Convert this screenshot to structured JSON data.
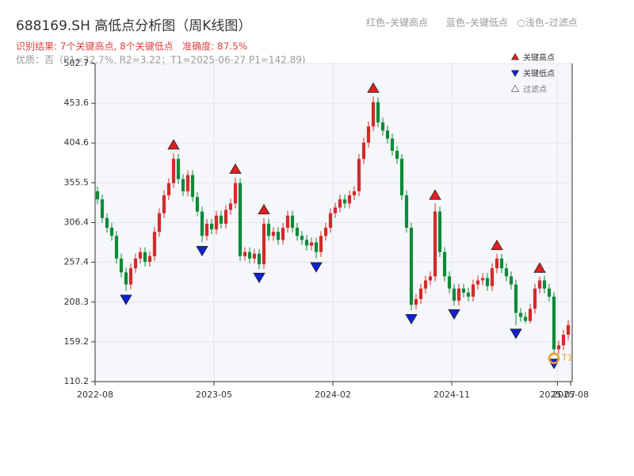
{
  "chart_data": {
    "type": "candlestick",
    "title": "688169.SH 高低点分析图（周K线图）",
    "header_legend": "红色–关键高点      蓝色–关键低点   ○浅色–过滤点",
    "result": "识别结果: 7个关键高点, 8个关键低点   准确度: 87.5%",
    "quality": "优质：否（P1=32.7%, R2=3.22；T1=2025-06-27 P1=142.89)",
    "legend": [
      "关键高点",
      "关键低点",
      "过滤点"
    ],
    "marker_label": "T1",
    "up_color": "#d42a2a",
    "down_color": "#0d8a3a",
    "high_color": "#e02020",
    "low_color": "#1020d0",
    "t1_color": "#f0a030",
    "xlim": [
      "2022-08",
      "2025-08"
    ],
    "xticks": [
      "2022-08",
      "2023-05",
      "2024-02",
      "2024-11",
      "2025-07",
      "2025-08"
    ],
    "ylim": [
      110.2,
      502.7
    ],
    "yticks": [
      110.2,
      159.2,
      208.3,
      257.4,
      306.4,
      355.5,
      404.6,
      453.6,
      502.7
    ],
    "grid": true,
    "open": [
      345,
      335,
      312,
      300,
      290,
      262,
      245,
      230,
      250,
      262,
      270,
      258,
      265,
      295,
      318,
      340,
      355,
      385,
      360,
      345,
      365,
      338,
      320,
      290,
      305,
      298,
      315,
      305,
      322,
      330,
      355,
      265,
      270,
      262,
      268,
      255,
      305,
      290,
      295,
      285,
      300,
      315,
      300,
      290,
      285,
      278,
      282,
      270,
      290,
      300,
      318,
      325,
      335,
      330,
      340,
      345,
      385,
      405,
      425,
      455,
      430,
      420,
      410,
      395,
      385,
      340,
      300,
      205,
      212,
      225,
      235,
      240,
      320,
      270,
      240,
      225,
      210,
      225,
      220,
      215,
      230,
      235,
      238,
      228,
      250,
      262,
      250,
      240,
      230,
      195,
      190,
      185,
      200,
      225,
      235,
      225,
      215,
      150,
      155,
      168
    ],
    "close": [
      335,
      312,
      300,
      290,
      262,
      245,
      230,
      250,
      262,
      270,
      258,
      265,
      295,
      318,
      340,
      355,
      385,
      360,
      345,
      365,
      338,
      320,
      290,
      305,
      298,
      315,
      305,
      322,
      330,
      355,
      265,
      270,
      262,
      268,
      255,
      305,
      290,
      295,
      285,
      300,
      315,
      300,
      290,
      285,
      278,
      282,
      270,
      290,
      300,
      318,
      325,
      335,
      330,
      340,
      345,
      385,
      405,
      425,
      455,
      430,
      420,
      410,
      395,
      385,
      340,
      300,
      205,
      212,
      225,
      235,
      240,
      320,
      270,
      240,
      225,
      210,
      225,
      220,
      215,
      230,
      235,
      238,
      228,
      250,
      262,
      250,
      240,
      230,
      195,
      190,
      185,
      200,
      225,
      235,
      225,
      215,
      150,
      155,
      168,
      180
    ],
    "high": [
      351,
      341,
      318,
      306,
      296,
      268,
      251,
      256,
      268,
      276,
      276,
      271,
      301,
      324,
      346,
      361,
      392,
      391,
      366,
      371,
      371,
      344,
      326,
      311,
      311,
      321,
      321,
      328,
      336,
      362,
      361,
      276,
      276,
      274,
      274,
      312,
      311,
      301,
      301,
      306,
      321,
      321,
      306,
      296,
      291,
      288,
      288,
      296,
      306,
      324,
      331,
      341,
      341,
      346,
      351,
      391,
      411,
      431,
      462,
      461,
      436,
      426,
      416,
      401,
      391,
      346,
      306,
      218,
      231,
      241,
      246,
      330,
      326,
      276,
      246,
      231,
      231,
      231,
      226,
      236,
      241,
      244,
      244,
      256,
      268,
      268,
      256,
      246,
      236,
      201,
      196,
      206,
      231,
      240,
      241,
      231,
      221,
      161,
      174,
      186
    ],
    "low": [
      329,
      306,
      294,
      284,
      256,
      239,
      222,
      224,
      244,
      256,
      252,
      252,
      259,
      289,
      312,
      334,
      349,
      354,
      339,
      339,
      332,
      314,
      282,
      284,
      292,
      292,
      299,
      299,
      316,
      324,
      259,
      259,
      256,
      256,
      249,
      249,
      284,
      284,
      279,
      279,
      294,
      294,
      284,
      279,
      272,
      272,
      262,
      264,
      284,
      294,
      312,
      319,
      324,
      324,
      334,
      339,
      379,
      399,
      419,
      424,
      414,
      404,
      389,
      379,
      334,
      294,
      198,
      199,
      206,
      219,
      229,
      234,
      264,
      234,
      219,
      204,
      204,
      214,
      209,
      209,
      224,
      229,
      222,
      222,
      244,
      244,
      234,
      224,
      180,
      184,
      182,
      182,
      194,
      219,
      219,
      209,
      142.89,
      144,
      149,
      162
    ],
    "key_highs": [
      16,
      29,
      35,
      58,
      71,
      84,
      93
    ],
    "key_lows": [
      6,
      22,
      34,
      46,
      66,
      75,
      88,
      96
    ],
    "t1_index": 96
  }
}
